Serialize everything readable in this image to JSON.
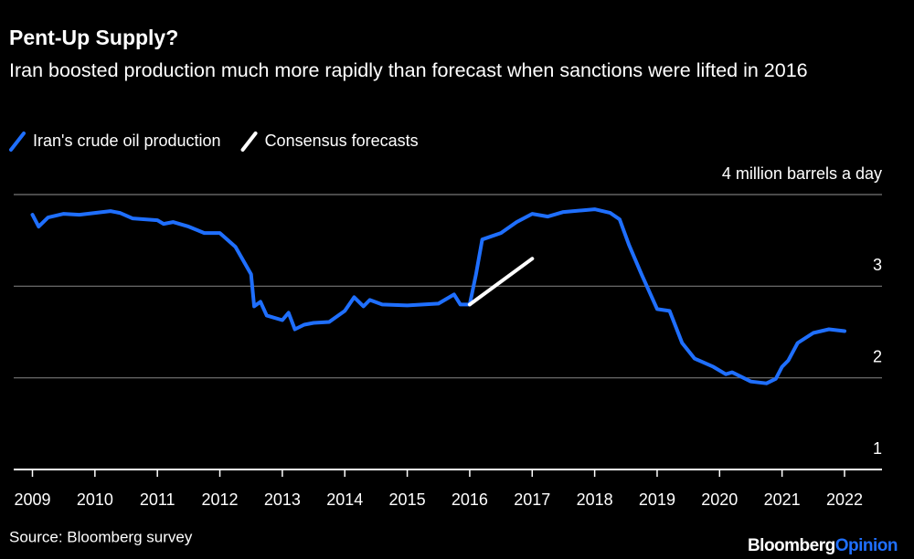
{
  "chart_data": {
    "type": "line",
    "title": "Pent-Up Supply?",
    "subtitle": "Iran boosted production much more rapidly than forecast when sanctions were lifted in 2016",
    "source": "Source: Bloomberg survey",
    "logo": [
      "Bloomberg",
      "Opinion"
    ],
    "xlim": [
      2008.7,
      2022.6
    ],
    "xticks": [
      2009,
      2010,
      2011,
      2012,
      2013,
      2014,
      2015,
      2016,
      2017,
      2018,
      2019,
      2020,
      2021,
      2022
    ],
    "ylim": [
      1,
      4
    ],
    "yticks": [
      1,
      2,
      3,
      {
        "value": 4,
        "label": "4 million barrels a day"
      }
    ],
    "grid": true,
    "series": [
      {
        "name": "Iran's crude oil production",
        "color": "#1f6fff",
        "x": [
          2009.0,
          2009.1,
          2009.25,
          2009.5,
          2009.75,
          2010.0,
          2010.25,
          2010.4,
          2010.6,
          2011.0,
          2011.1,
          2011.25,
          2011.5,
          2011.75,
          2012.0,
          2012.25,
          2012.5,
          2012.55,
          2012.65,
          2012.75,
          2013.0,
          2013.1,
          2013.2,
          2013.35,
          2013.5,
          2013.75,
          2014.0,
          2014.15,
          2014.3,
          2014.4,
          2014.6,
          2015.0,
          2015.5,
          2015.75,
          2015.85,
          2016.0,
          2016.1,
          2016.2,
          2016.5,
          2016.75,
          2017.0,
          2017.25,
          2017.5,
          2018.0,
          2018.25,
          2018.4,
          2018.55,
          2018.75,
          2019.0,
          2019.2,
          2019.4,
          2019.6,
          2019.9,
          2020.1,
          2020.2,
          2020.5,
          2020.75,
          2020.9,
          2021.0,
          2021.1,
          2021.25,
          2021.5,
          2021.75,
          2022.0
        ],
        "values": [
          3.78,
          3.65,
          3.75,
          3.79,
          3.78,
          3.8,
          3.82,
          3.8,
          3.74,
          3.72,
          3.68,
          3.7,
          3.65,
          3.58,
          3.58,
          3.43,
          3.13,
          2.78,
          2.83,
          2.68,
          2.63,
          2.71,
          2.53,
          2.58,
          2.6,
          2.61,
          2.73,
          2.88,
          2.78,
          2.85,
          2.8,
          2.79,
          2.81,
          2.91,
          2.8,
          2.8,
          3.13,
          3.51,
          3.58,
          3.7,
          3.79,
          3.76,
          3.81,
          3.84,
          3.8,
          3.73,
          3.45,
          3.13,
          2.75,
          2.73,
          2.38,
          2.21,
          2.12,
          2.04,
          2.06,
          1.96,
          1.94,
          1.99,
          2.12,
          2.19,
          2.38,
          2.49,
          2.53,
          2.51
        ]
      },
      {
        "name": "Consensus forecasts",
        "color": "#ffffff",
        "x": [
          2016.0,
          2017.0
        ],
        "values": [
          2.8,
          3.3
        ]
      }
    ]
  }
}
